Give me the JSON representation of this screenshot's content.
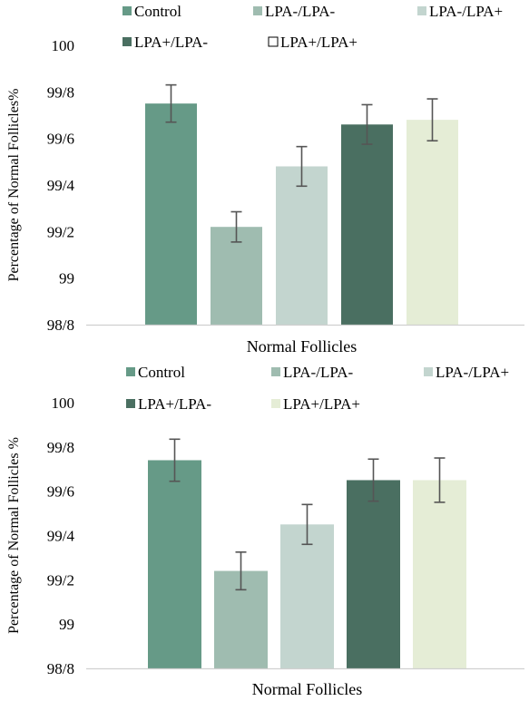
{
  "chart_data": [
    {
      "type": "bar",
      "categories": [
        "Normal Follicles"
      ],
      "series": [
        {
          "name": "Control",
          "values": [
            99.75
          ],
          "error": [
            0.08
          ],
          "color": "#669a87"
        },
        {
          "name": "LPA-/LPA-",
          "values": [
            99.22
          ],
          "error": [
            0.065
          ],
          "color": "#9fbcb0"
        },
        {
          "name": "LPA-/LPA+",
          "values": [
            99.48
          ],
          "error": [
            0.085
          ],
          "color": "#c3d5cf"
        },
        {
          "name": "LPA+/LPA-",
          "values": [
            99.66
          ],
          "error": [
            0.085
          ],
          "color": "#4a6f61"
        },
        {
          "name": "LPA+/LPA+",
          "values": [
            99.68
          ],
          "error": [
            0.09
          ],
          "color": "#e5edd6"
        }
      ],
      "legend_markers": [
        "filled",
        "filled",
        "filled",
        "filled",
        "hollow"
      ],
      "xlabel": "Normal Follicles",
      "ylabel": "Percentage of Normal Follicles%",
      "yticks": [
        "98/8",
        "99",
        "99/2",
        "99/4",
        "99/6",
        "99/8",
        "100"
      ],
      "ylim": [
        98.8,
        100
      ],
      "legend_position": "top",
      "grid": false
    },
    {
      "type": "bar",
      "categories": [
        "Normal Follicles"
      ],
      "series": [
        {
          "name": "Control",
          "values": [
            99.74
          ],
          "error": [
            0.095
          ],
          "color": "#669a87"
        },
        {
          "name": "LPA-/LPA-",
          "values": [
            99.24
          ],
          "error": [
            0.085
          ],
          "color": "#9fbcb0"
        },
        {
          "name": "LPA-/LPA+",
          "values": [
            99.45
          ],
          "error": [
            0.09
          ],
          "color": "#c3d5cf"
        },
        {
          "name": "LPA+/LPA-",
          "values": [
            99.65
          ],
          "error": [
            0.095
          ],
          "color": "#4a6f61"
        },
        {
          "name": "LPA+/LPA+",
          "values": [
            99.65
          ],
          "error": [
            0.1
          ],
          "color": "#e5edd6"
        }
      ],
      "legend_markers": [
        "filled",
        "filled",
        "filled",
        "filled",
        "filled"
      ],
      "xlabel": "Normal Follicles",
      "ylabel": "Percentage of Normal Follicles %",
      "yticks": [
        "98/8",
        "99",
        "99/2",
        "99/4",
        "99/6",
        "99/8",
        "100"
      ],
      "ylim": [
        98.8,
        100
      ],
      "legend_position": "top",
      "grid": false
    }
  ]
}
